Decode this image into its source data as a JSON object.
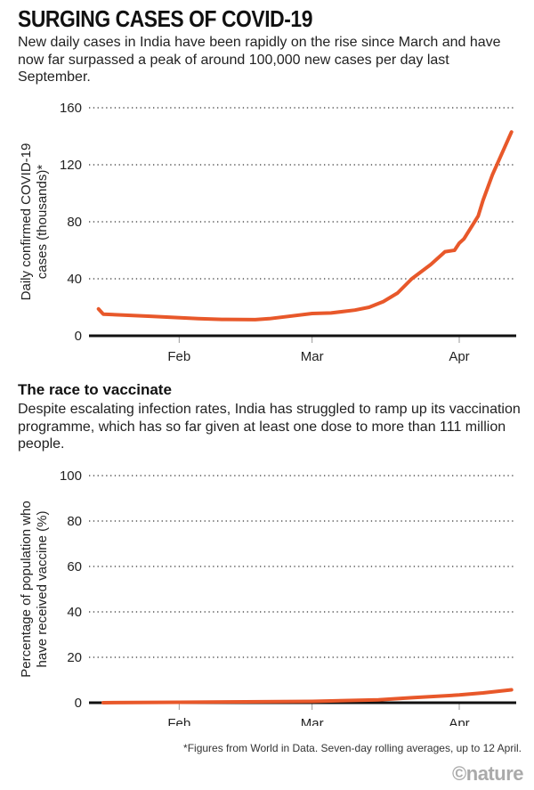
{
  "title": "SURGING CASES OF COVID-19",
  "subtitle": "New daily cases in India have been rapidly on the rise since March and have now far surpassed a peak of around 100,000 new cases per day last September.",
  "section2_title": "The race to vaccinate",
  "section2_subtitle": "Despite escalating infection rates, India has struggled to ramp up its vaccination programme, which has so far given at least one dose to more than 111 million people.",
  "footnote": "*Figures from World in Data. Seven-day rolling averages, up to 12 April.",
  "logo": "©nature",
  "chart_data": [
    {
      "type": "line",
      "ylabel": [
        "Daily confirmed COVID-19",
        "cases (thousands)*"
      ],
      "ylim": [
        0,
        160
      ],
      "yticks": [
        0,
        40,
        80,
        120,
        160
      ],
      "xticks": [
        {
          "label": "Feb",
          "date": "2021-02-01"
        },
        {
          "label": "Mar",
          "date": "2021-03-01"
        },
        {
          "label": "Apr",
          "date": "2021-04-01"
        }
      ],
      "xlim": [
        "2021-01-13",
        "2021-04-13"
      ],
      "grid": true,
      "color": "#e8582a",
      "x": [
        "2021-01-15",
        "2021-01-16",
        "2021-01-26",
        "2021-02-05",
        "2021-02-10",
        "2021-02-17",
        "2021-02-20",
        "2021-03-01",
        "2021-03-05",
        "2021-03-10",
        "2021-03-13",
        "2021-03-16",
        "2021-03-19",
        "2021-03-22",
        "2021-03-26",
        "2021-03-29",
        "2021-03-31",
        "2021-04-01",
        "2021-04-02",
        "2021-04-05",
        "2021-04-06",
        "2021-04-08",
        "2021-04-10",
        "2021-04-12"
      ],
      "y": [
        18.8,
        15.2,
        13.7,
        12,
        11.5,
        11.3,
        12,
        15.6,
        16,
        18,
        20,
        24,
        30,
        40,
        50,
        59,
        60,
        65,
        68,
        84,
        95,
        113,
        128,
        143
      ]
    },
    {
      "type": "line",
      "ylabel": [
        "Percentage of population who",
        "have received vaccine (%)"
      ],
      "ylim": [
        0,
        100
      ],
      "yticks": [
        0,
        20,
        40,
        60,
        80,
        100
      ],
      "xticks": [
        {
          "label": "Feb",
          "date": "2021-02-01"
        },
        {
          "label": "Mar",
          "date": "2021-03-01"
        },
        {
          "label": "Apr",
          "date": "2021-04-01"
        }
      ],
      "xlim": [
        "2021-01-13",
        "2021-04-13"
      ],
      "grid": true,
      "color": "#e8582a",
      "x": [
        "2021-01-16",
        "2021-02-01",
        "2021-02-15",
        "2021-03-01",
        "2021-03-15",
        "2021-03-22",
        "2021-04-01",
        "2021-04-06",
        "2021-04-12"
      ],
      "y": [
        0,
        0.2,
        0.4,
        0.6,
        1.3,
        2.2,
        3.4,
        4.3,
        5.7
      ]
    }
  ]
}
